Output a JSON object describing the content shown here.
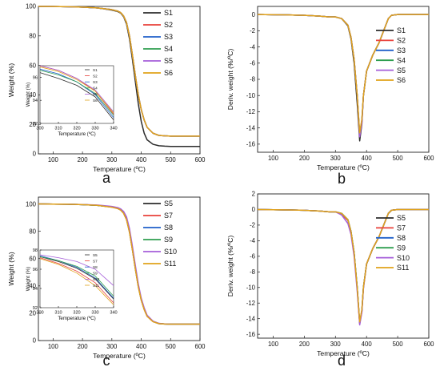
{
  "chart_data": [
    {
      "panel": "a",
      "type": "line",
      "title": "",
      "xlabel": "Temperature (ºC)",
      "ylabel": "Weight (%)",
      "xlim": [
        50,
        600
      ],
      "ylim": [
        0,
        100
      ],
      "xticks": [
        100,
        200,
        300,
        400,
        500,
        600
      ],
      "yticks": [
        0,
        20,
        40,
        60,
        80,
        100
      ],
      "grid": false,
      "legend": "top-right",
      "x": [
        50,
        100,
        150,
        200,
        250,
        300,
        320,
        330,
        340,
        350,
        360,
        370,
        380,
        390,
        400,
        410,
        420,
        440,
        460,
        480,
        500,
        550,
        600
      ],
      "series": [
        {
          "name": "S1",
          "color": "#2b2b2b",
          "y": [
            100,
            99.9,
            99.8,
            99.5,
            99,
            97.5,
            96.5,
            95.5,
            93,
            88,
            78,
            64,
            49,
            34,
            22,
            14,
            9.5,
            6.5,
            5.5,
            5.2,
            5,
            5,
            5
          ]
        },
        {
          "name": "S2",
          "color": "#e8403a",
          "y": [
            100,
            99.9,
            99.8,
            99.5,
            99,
            97.8,
            96.8,
            95.8,
            93.5,
            89,
            80,
            67,
            53,
            40,
            30,
            23,
            18,
            14,
            12.5,
            12.2,
            12,
            12,
            12
          ]
        },
        {
          "name": "S3",
          "color": "#1f5fc9",
          "y": [
            100,
            99.9,
            99.8,
            99.5,
            99,
            97.8,
            96.8,
            95.8,
            93.5,
            89,
            80,
            67,
            53,
            40,
            30,
            23,
            18,
            14,
            12.5,
            12.2,
            12,
            12,
            12
          ]
        },
        {
          "name": "S4",
          "color": "#2e9e4f",
          "y": [
            100,
            99.9,
            99.8,
            99.5,
            99,
            97.8,
            96.8,
            95.8,
            93.5,
            89,
            80,
            67,
            53,
            40,
            30,
            23,
            18,
            14,
            12.5,
            12.2,
            12,
            12,
            12
          ]
        },
        {
          "name": "S5",
          "color": "#a55ed9",
          "y": [
            100,
            99.9,
            99.8,
            99.5,
            99,
            97.8,
            96.8,
            95.8,
            93.5,
            89,
            80,
            67,
            53,
            40,
            30,
            23,
            18,
            14,
            12.5,
            12.2,
            12,
            12,
            12
          ]
        },
        {
          "name": "S6",
          "color": "#e0a21a",
          "y": [
            100,
            99.9,
            99.8,
            99.5,
            99,
            97.8,
            96.8,
            95.8,
            93.5,
            89,
            80,
            67,
            53,
            40,
            30,
            23,
            18,
            14,
            12.5,
            12.2,
            12,
            12,
            12
          ]
        }
      ],
      "inset": {
        "xlabel": "Temperature (ºC)",
        "ylabel": "Weight (%)",
        "xlim": [
          300,
          340
        ],
        "ylim": [
          92,
          97
        ],
        "xticks": [
          300,
          310,
          320,
          330,
          340
        ],
        "yticks": [
          92,
          94,
          96
        ],
        "legend": "top-right",
        "x": [
          300,
          310,
          320,
          330,
          340
        ],
        "series": [
          {
            "name": "S1",
            "color": "#2b2b2b",
            "y": [
              96.4,
              95.9,
              95.3,
              94.3,
              92.3
            ]
          },
          {
            "name": "S2",
            "color": "#e8403a",
            "y": [
              97.0,
              96.6,
              95.9,
              94.8,
              92.8
            ]
          },
          {
            "name": "S3",
            "color": "#1f5fc9",
            "y": [
              96.7,
              96.3,
              95.6,
              94.5,
              92.5
            ]
          },
          {
            "name": "S4",
            "color": "#2e9e4f",
            "y": [
              96.6,
              96.2,
              95.6,
              94.6,
              92.7
            ]
          },
          {
            "name": "S5",
            "color": "#a55ed9",
            "y": [
              97.0,
              96.6,
              95.9,
              94.9,
              93.0
            ]
          },
          {
            "name": "S6",
            "color": "#e0a21a",
            "y": [
              96.9,
              96.5,
              95.8,
              94.8,
              92.9
            ]
          }
        ]
      }
    },
    {
      "panel": "b",
      "type": "line",
      "title": "",
      "xlabel": "Temperature (ºC)",
      "ylabel": "Deriv. weight (%/ºC)",
      "xlim": [
        50,
        600
      ],
      "ylim": [
        -17,
        1
      ],
      "xticks": [
        100,
        200,
        300,
        400,
        500,
        600
      ],
      "yticks": [
        -16,
        -14,
        -12,
        -10,
        -8,
        -6,
        -4,
        -2,
        0
      ],
      "grid": false,
      "legend": "top-right",
      "x": [
        50,
        150,
        200,
        250,
        280,
        300,
        320,
        340,
        350,
        360,
        370,
        378,
        385,
        390,
        400,
        420,
        440,
        460,
        470,
        480,
        500,
        600
      ],
      "series": [
        {
          "name": "S1",
          "color": "#2b2b2b",
          "y": [
            0,
            -0.05,
            -0.1,
            -0.2,
            -0.3,
            -0.3,
            -0.5,
            -1.4,
            -3,
            -6,
            -11,
            -15.6,
            -13.5,
            -10,
            -7,
            -5,
            -3.5,
            -1.5,
            -0.5,
            -0.1,
            0,
            0
          ]
        },
        {
          "name": "S2",
          "color": "#e8403a",
          "y": [
            0,
            -0.05,
            -0.1,
            -0.2,
            -0.3,
            -0.3,
            -0.5,
            -1.3,
            -2.8,
            -5.5,
            -10,
            -15.0,
            -13.2,
            -10,
            -7,
            -5,
            -3.5,
            -1.5,
            -0.5,
            -0.1,
            0,
            0
          ]
        },
        {
          "name": "S3",
          "color": "#1f5fc9",
          "y": [
            0,
            -0.05,
            -0.1,
            -0.2,
            -0.3,
            -0.3,
            -0.5,
            -1.3,
            -2.8,
            -5.5,
            -10,
            -14.9,
            -13.1,
            -10,
            -7,
            -5,
            -3.5,
            -1.5,
            -0.5,
            -0.1,
            0,
            0
          ]
        },
        {
          "name": "S4",
          "color": "#2e9e4f",
          "y": [
            0,
            -0.05,
            -0.1,
            -0.2,
            -0.3,
            -0.3,
            -0.5,
            -1.3,
            -2.8,
            -5.5,
            -10,
            -14.8,
            -13.0,
            -10,
            -7,
            -5,
            -3.5,
            -1.5,
            -0.5,
            -0.1,
            0,
            0
          ]
        },
        {
          "name": "S5",
          "color": "#a55ed9",
          "y": [
            0,
            -0.05,
            -0.1,
            -0.2,
            -0.3,
            -0.3,
            -0.5,
            -1.3,
            -2.8,
            -5.5,
            -10,
            -15.1,
            -13.3,
            -10,
            -7,
            -5,
            -3.5,
            -1.5,
            -0.5,
            -0.1,
            0,
            0
          ]
        },
        {
          "name": "S6",
          "color": "#e0a21a",
          "y": [
            0,
            -0.05,
            -0.1,
            -0.2,
            -0.3,
            -0.3,
            -0.5,
            -1.3,
            -2.8,
            -5.5,
            -10,
            -14.6,
            -12.9,
            -10,
            -7,
            -5,
            -3.5,
            -1.5,
            -0.5,
            -0.1,
            0,
            0
          ]
        }
      ]
    },
    {
      "panel": "c",
      "type": "line",
      "title": "",
      "xlabel": "Temperature (ºC)",
      "ylabel": "Weight (%)",
      "xlim": [
        50,
        600
      ],
      "ylim": [
        0,
        105
      ],
      "xticks": [
        100,
        200,
        300,
        400,
        500,
        600
      ],
      "yticks": [
        0,
        20,
        40,
        60,
        80,
        100
      ],
      "grid": false,
      "legend": "top-right",
      "x": [
        50,
        100,
        150,
        200,
        250,
        300,
        320,
        330,
        340,
        350,
        360,
        370,
        380,
        390,
        400,
        410,
        420,
        440,
        460,
        480,
        500,
        550,
        600
      ],
      "series": [
        {
          "name": "S5",
          "color": "#2b2b2b",
          "y": [
            100,
            99.9,
            99.8,
            99.5,
            99,
            97.8,
            96.8,
            95.8,
            93.5,
            89,
            80,
            67,
            53,
            40,
            30,
            23,
            18,
            14,
            12.5,
            12.2,
            12,
            12,
            12
          ]
        },
        {
          "name": "S7",
          "color": "#e8403a",
          "y": [
            100,
            99.9,
            99.8,
            99.5,
            99,
            97.7,
            96.7,
            95.6,
            93.2,
            88.6,
            79.5,
            66.5,
            52.5,
            39.5,
            29.7,
            22.8,
            17.8,
            13.9,
            12.4,
            12.1,
            12,
            12,
            12
          ]
        },
        {
          "name": "S8",
          "color": "#1f5fc9",
          "y": [
            100,
            99.9,
            99.8,
            99.5,
            99,
            97.7,
            96.7,
            95.6,
            93.3,
            88.7,
            79.6,
            66.6,
            52.6,
            39.6,
            29.8,
            22.9,
            17.9,
            13.9,
            12.4,
            12.1,
            12,
            12,
            12
          ]
        },
        {
          "name": "S9",
          "color": "#2e9e4f",
          "y": [
            100,
            99.9,
            99.8,
            99.5,
            99,
            97.8,
            96.8,
            95.7,
            93.4,
            88.9,
            79.8,
            66.8,
            52.8,
            39.8,
            29.9,
            23,
            18,
            14,
            12.5,
            12.2,
            12,
            12,
            12
          ]
        },
        {
          "name": "S10",
          "color": "#a55ed9",
          "y": [
            100,
            99.9,
            99.8,
            99.6,
            99.2,
            98.2,
            97.3,
            96.4,
            94.5,
            90.5,
            82,
            69,
            55,
            41.5,
            31,
            24,
            18.5,
            14.2,
            12.6,
            12.2,
            12,
            12,
            12
          ]
        },
        {
          "name": "S11",
          "color": "#e0a21a",
          "y": [
            100,
            99.9,
            99.8,
            99.5,
            99,
            97.6,
            96.6,
            95.5,
            93.1,
            88.4,
            79.3,
            66.3,
            52.3,
            39.3,
            29.6,
            22.7,
            17.7,
            13.8,
            12.4,
            12.1,
            12,
            12,
            12
          ]
        }
      ],
      "inset": {
        "xlabel": "Temperature (ºC)",
        "ylabel": "Weight (%)",
        "xlim": [
          300,
          340
        ],
        "ylim": [
          92,
          98
        ],
        "xticks": [
          300,
          310,
          320,
          330,
          340
        ],
        "yticks": [
          92,
          94,
          96,
          98
        ],
        "legend": "top-right",
        "x": [
          300,
          310,
          320,
          330,
          340
        ],
        "series": [
          {
            "name": "S5",
            "color": "#2b2b2b",
            "y": [
              97.3,
              96.8,
              96.1,
              95.0,
              92.9
            ]
          },
          {
            "name": "S7",
            "color": "#e8403a",
            "y": [
              97.2,
              96.6,
              95.8,
              94.6,
              92.5
            ]
          },
          {
            "name": "S8",
            "color": "#1f5fc9",
            "y": [
              97.4,
              96.9,
              96.2,
              95.1,
              93.0
            ]
          },
          {
            "name": "S9",
            "color": "#2e9e4f",
            "y": [
              97.3,
              96.9,
              96.3,
              95.3,
              93.2
            ]
          },
          {
            "name": "S10",
            "color": "#a55ed9",
            "y": [
              97.5,
              97.2,
              96.8,
              96.0,
              94.3
            ]
          },
          {
            "name": "S11",
            "color": "#e0a21a",
            "y": [
              97.1,
              96.5,
              95.6,
              94.3,
              92.3
            ]
          }
        ]
      }
    },
    {
      "panel": "d",
      "type": "line",
      "title": "",
      "xlabel": "Temperature (ºC)",
      "ylabel": "Deriv. weight (%/ºC)",
      "xlim": [
        50,
        600
      ],
      "ylim": [
        -16.5,
        2
      ],
      "xticks": [
        100,
        200,
        300,
        400,
        500,
        600
      ],
      "yticks": [
        -16,
        -14,
        -12,
        -10,
        -8,
        -6,
        -4,
        -2,
        0,
        2
      ],
      "grid": false,
      "legend": "top-right",
      "x": [
        50,
        150,
        200,
        250,
        280,
        300,
        320,
        340,
        350,
        360,
        370,
        378,
        385,
        390,
        400,
        420,
        440,
        460,
        470,
        480,
        500,
        600
      ],
      "series": [
        {
          "name": "S5",
          "color": "#2b2b2b",
          "y": [
            0,
            -0.05,
            -0.1,
            -0.2,
            -0.3,
            -0.3,
            -0.5,
            -1.3,
            -2.8,
            -5.5,
            -10,
            -14.6,
            -13.0,
            -10,
            -7,
            -5,
            -3.5,
            -1.5,
            -0.5,
            -0.1,
            0,
            0
          ]
        },
        {
          "name": "S7",
          "color": "#e8403a",
          "y": [
            0,
            -0.05,
            -0.1,
            -0.2,
            -0.3,
            -0.3,
            -0.6,
            -1.4,
            -2.9,
            -5.6,
            -10.2,
            -14.7,
            -13.1,
            -10,
            -7,
            -5,
            -3.5,
            -1.5,
            -0.5,
            -0.1,
            0,
            0
          ]
        },
        {
          "name": "S8",
          "color": "#1f5fc9",
          "y": [
            0,
            -0.05,
            -0.1,
            -0.2,
            -0.3,
            -0.3,
            -0.5,
            -1.3,
            -2.8,
            -5.5,
            -10,
            -14.6,
            -13.0,
            -10,
            -7,
            -5,
            -3.5,
            -1.5,
            -0.5,
            -0.1,
            0,
            0
          ]
        },
        {
          "name": "S9",
          "color": "#2e9e4f",
          "y": [
            0,
            -0.05,
            -0.1,
            -0.2,
            -0.3,
            -0.3,
            -0.5,
            -1.3,
            -2.8,
            -5.5,
            -10,
            -14.5,
            -12.9,
            -10,
            -7,
            -5,
            -3.5,
            -1.5,
            -0.5,
            -0.1,
            0,
            0
          ]
        },
        {
          "name": "S10",
          "color": "#a55ed9",
          "y": [
            0,
            -0.05,
            -0.1,
            -0.2,
            -0.3,
            -0.3,
            -0.7,
            -1.8,
            -3.2,
            -6,
            -10.5,
            -14.8,
            -13.2,
            -10.2,
            -7,
            -5,
            -3.5,
            -1.5,
            -0.5,
            -0.1,
            0,
            0
          ]
        },
        {
          "name": "S11",
          "color": "#e0a21a",
          "y": [
            0,
            -0.05,
            -0.1,
            -0.2,
            -0.3,
            -0.3,
            -0.5,
            -1.3,
            -2.8,
            -5.5,
            -10,
            -14.4,
            -12.8,
            -10,
            -7,
            -5,
            -3.5,
            -1.5,
            -0.5,
            -0.1,
            0,
            0
          ]
        }
      ]
    }
  ]
}
